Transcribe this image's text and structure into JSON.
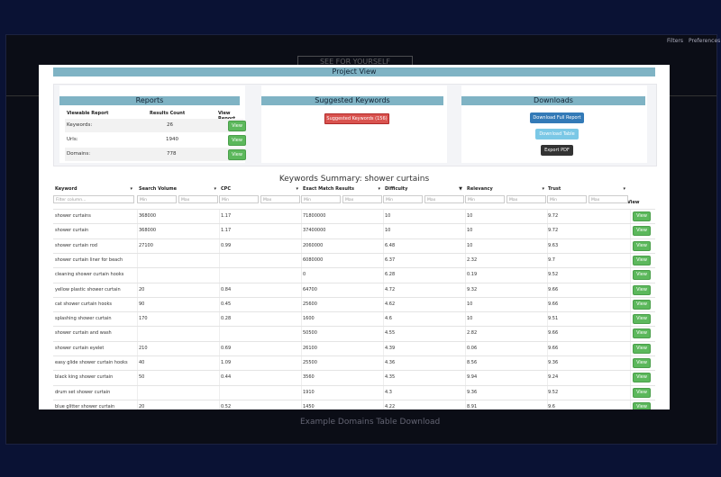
{
  "background": {
    "nav_items": [
      "Filters",
      "Preferences"
    ],
    "see_button": "SEE FOR YOURSELF",
    "footer_link": "Example Domains Table Download"
  },
  "modal": {
    "title": "Project View",
    "reports": {
      "heading": "Reports",
      "columns": [
        "Viewable Report",
        "Results Count",
        "View Report"
      ],
      "rows": [
        {
          "name": "Keywords:",
          "count": "26",
          "button": "View"
        },
        {
          "name": "Urls:",
          "count": "1940",
          "button": "View"
        },
        {
          "name": "Domains:",
          "count": "778",
          "button": "View"
        }
      ]
    },
    "suggested": {
      "heading": "Suggested Keywords",
      "button": "Suggested Keywords (156)"
    },
    "downloads": {
      "heading": "Downloads",
      "full_report": "Download Full Report",
      "table": "Download Table",
      "pdf": "Export PDF"
    },
    "summary_title": "Keywords Summary: shower curtains",
    "table": {
      "headers": [
        "Keyword",
        "Search Volume",
        "CPC",
        "Exact Match Results",
        "Difficulty",
        "Relevancy",
        "Trust",
        "View"
      ],
      "filter_placeholder": "Filter column...",
      "min": "Min",
      "max": "Max",
      "button": "View",
      "rows": [
        [
          "shower curtains",
          "368000",
          "1.17",
          "71800000",
          "10",
          "10",
          "9.72"
        ],
        [
          "shower curtain",
          "368000",
          "1.17",
          "37400000",
          "10",
          "10",
          "9.72"
        ],
        [
          "shower curtain rod",
          "27100",
          "0.99",
          "2060000",
          "6.48",
          "10",
          "9.63"
        ],
        [
          "shower curtain liner for beach",
          "",
          "",
          "6080000",
          "6.37",
          "2.32",
          "9.7"
        ],
        [
          "cleaning shower curtain hooks",
          "",
          "",
          "0",
          "6.28",
          "0.19",
          "9.52"
        ],
        [
          "yellow plastic shower curtain",
          "20",
          "0.84",
          "64700",
          "4.72",
          "9.32",
          "9.66"
        ],
        [
          "cat shower curtain hooks",
          "90",
          "0.45",
          "25600",
          "4.62",
          "10",
          "9.66"
        ],
        [
          "splashing shower curtain",
          "170",
          "0.28",
          "1600",
          "4.6",
          "10",
          "9.51"
        ],
        [
          "shower curtain and wash",
          "",
          "",
          "50500",
          "4.55",
          "2.82",
          "9.66"
        ],
        [
          "shower curtain eyelet",
          "210",
          "0.69",
          "26100",
          "4.39",
          "0.06",
          "9.66"
        ],
        [
          "easy glide shower curtain hooks",
          "40",
          "1.09",
          "25500",
          "4.36",
          "8.56",
          "9.36"
        ],
        [
          "black king shower curtain",
          "50",
          "0.44",
          "3560",
          "4.35",
          "9.94",
          "9.24"
        ],
        [
          "drum set shower curtain",
          "",
          "",
          "1910",
          "4.3",
          "9.36",
          "9.52"
        ],
        [
          "blue glitter shower curtain",
          "20",
          "0.52",
          "1450",
          "4.22",
          "8.91",
          "9.6"
        ]
      ]
    }
  }
}
